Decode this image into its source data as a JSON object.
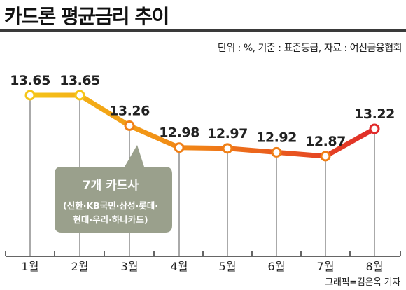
{
  "header": {
    "title": "카드론 평균금리 추이",
    "subtitle": "단위 : %, 기준 : 표준등급, 자료 : 여신금융협회"
  },
  "footer": {
    "credit": "그래픽=김은옥 기자"
  },
  "callout": {
    "title": "7개 카드사",
    "lines": [
      "(신한·KB국민·삼성·롯데·",
      "현대·우리·하나카드)"
    ],
    "fill": "#9aa08c"
  },
  "colors": {
    "start": "#f5c518",
    "middle": "#f07f16",
    "end": "#e02a2a"
  },
  "chart_data": {
    "type": "line",
    "categories": [
      "1월",
      "2월",
      "3월",
      "4월",
      "5월",
      "6월",
      "7월",
      "8월"
    ],
    "values": [
      13.65,
      13.65,
      13.26,
      12.98,
      12.97,
      12.92,
      12.87,
      13.22
    ],
    "value_labels": [
      "13.65",
      "13.65",
      "13.26",
      "12.98",
      "12.97",
      "12.92",
      "12.87",
      "13.22"
    ],
    "title": "카드론 평균금리 추이",
    "unit": "%",
    "grid": false,
    "legend": "none"
  }
}
